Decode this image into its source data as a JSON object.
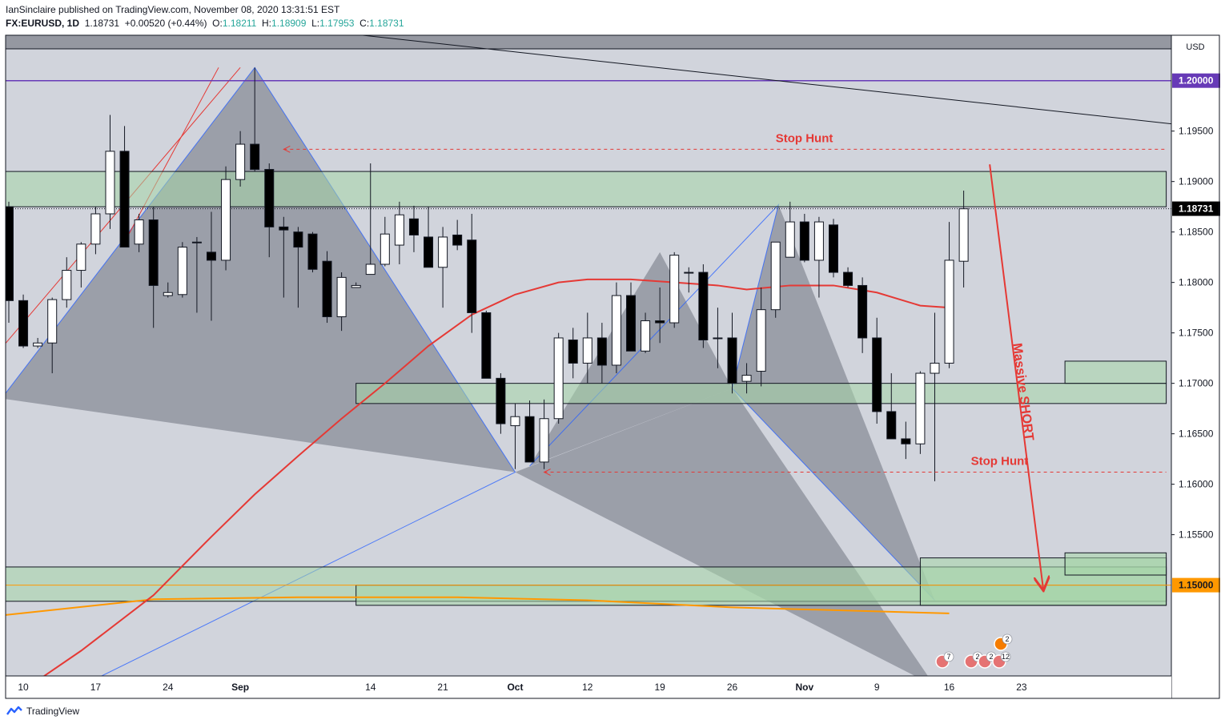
{
  "header": {
    "publisher_line": "IanSinclaire published on TradingView.com, November 08, 2020 13:31:51 EST",
    "symbol": "FX:EURUSD, 1D",
    "last": "1.18731",
    "change": "+0.00520 (+0.44%)",
    "o_label": "O:",
    "o_value": "1.18211",
    "h_label": "H:",
    "h_value": "1.18909",
    "l_label": "L:",
    "l_value": "1.17953",
    "c_label": "C:",
    "c_value": "1.18731"
  },
  "footer": {
    "brand": "TradingView"
  },
  "chart_data": {
    "type": "candlestick",
    "currency": "USD",
    "y_range": [
      1.141,
      1.2045
    ],
    "y_ticks": [
      "1.19500",
      "1.19000",
      "1.18500",
      "1.18000",
      "1.17500",
      "1.17000",
      "1.16500",
      "1.16000",
      "1.15500"
    ],
    "price_labels": [
      {
        "text": "1.20000",
        "value": 1.2,
        "color": "#673ab7"
      },
      {
        "text": "1.18731",
        "value": 1.18731,
        "color": "#000000"
      },
      {
        "text": "1.15000",
        "value": 1.15,
        "color": "#ff9800"
      }
    ],
    "x_ticks": [
      "10",
      "17",
      "24",
      "Sep",
      "14",
      "21",
      "Oct",
      "12",
      "19",
      "26",
      "Nov",
      "9",
      "16",
      "23"
    ],
    "candles": [
      {
        "o": 1.1875,
        "h": 1.188,
        "l": 1.176,
        "c": 1.1782
      },
      {
        "o": 1.1782,
        "h": 1.1788,
        "l": 1.1735,
        "c": 1.1737
      },
      {
        "o": 1.1737,
        "h": 1.1745,
        "l": 1.1735,
        "c": 1.174
      },
      {
        "o": 1.174,
        "h": 1.1785,
        "l": 1.171,
        "c": 1.1783
      },
      {
        "o": 1.1783,
        "h": 1.1825,
        "l": 1.1775,
        "c": 1.1812
      },
      {
        "o": 1.1812,
        "h": 1.184,
        "l": 1.1795,
        "c": 1.1838
      },
      {
        "o": 1.1838,
        "h": 1.1875,
        "l": 1.1828,
        "c": 1.1868
      },
      {
        "o": 1.1868,
        "h": 1.1966,
        "l": 1.1853,
        "c": 1.193
      },
      {
        "o": 1.193,
        "h": 1.1955,
        "l": 1.1835,
        "c": 1.1835
      },
      {
        "o": 1.1838,
        "h": 1.1868,
        "l": 1.183,
        "c": 1.1862
      },
      {
        "o": 1.1862,
        "h": 1.1875,
        "l": 1.1755,
        "c": 1.1797
      },
      {
        "o": 1.1787,
        "h": 1.18,
        "l": 1.1785,
        "c": 1.179
      },
      {
        "o": 1.1788,
        "h": 1.184,
        "l": 1.1785,
        "c": 1.1835
      },
      {
        "o": 1.184,
        "h": 1.1845,
        "l": 1.177,
        "c": 1.184
      },
      {
        "o": 1.183,
        "h": 1.187,
        "l": 1.1762,
        "c": 1.1822
      },
      {
        "o": 1.1822,
        "h": 1.1915,
        "l": 1.1812,
        "c": 1.1902
      },
      {
        "o": 1.1902,
        "h": 1.195,
        "l": 1.1895,
        "c": 1.1937
      },
      {
        "o": 1.1937,
        "h": 1.2013,
        "l": 1.191,
        "c": 1.1912
      },
      {
        "o": 1.1912,
        "h": 1.1918,
        "l": 1.1825,
        "c": 1.1855
      },
      {
        "o": 1.1855,
        "h": 1.1865,
        "l": 1.1785,
        "c": 1.1852
      },
      {
        "o": 1.185,
        "h": 1.1855,
        "l": 1.1775,
        "c": 1.1835
      },
      {
        "o": 1.1848,
        "h": 1.185,
        "l": 1.181,
        "c": 1.1813
      },
      {
        "o": 1.1821,
        "h": 1.1831,
        "l": 1.176,
        "c": 1.1766
      },
      {
        "o": 1.1766,
        "h": 1.181,
        "l": 1.1752,
        "c": 1.1805
      },
      {
        "o": 1.1795,
        "h": 1.18,
        "l": 1.1795,
        "c": 1.1797
      },
      {
        "o": 1.1808,
        "h": 1.1918,
        "l": 1.181,
        "c": 1.1818
      },
      {
        "o": 1.1818,
        "h": 1.1865,
        "l": 1.1816,
        "c": 1.1848
      },
      {
        "o": 1.1837,
        "h": 1.188,
        "l": 1.1818,
        "c": 1.1867
      },
      {
        "o": 1.1863,
        "h": 1.1876,
        "l": 1.183,
        "c": 1.1847
      },
      {
        "o": 1.1845,
        "h": 1.1875,
        "l": 1.1815,
        "c": 1.1815
      },
      {
        "o": 1.1815,
        "h": 1.1855,
        "l": 1.1775,
        "c": 1.1845
      },
      {
        "o": 1.1847,
        "h": 1.1862,
        "l": 1.1832,
        "c": 1.1837
      },
      {
        "o": 1.1842,
        "h": 1.1868,
        "l": 1.175,
        "c": 1.177
      },
      {
        "o": 1.177,
        "h": 1.1772,
        "l": 1.1705,
        "c": 1.1705
      },
      {
        "o": 1.1705,
        "h": 1.171,
        "l": 1.165,
        "c": 1.166
      },
      {
        "o": 1.1658,
        "h": 1.168,
        "l": 1.1615,
        "c": 1.1667
      },
      {
        "o": 1.1667,
        "h": 1.1683,
        "l": 1.1622,
        "c": 1.1622
      },
      {
        "o": 1.1622,
        "h": 1.1684,
        "l": 1.1615,
        "c": 1.1665
      },
      {
        "o": 1.1665,
        "h": 1.175,
        "l": 1.166,
        "c": 1.1745
      },
      {
        "o": 1.1743,
        "h": 1.1755,
        "l": 1.1705,
        "c": 1.172
      },
      {
        "o": 1.172,
        "h": 1.177,
        "l": 1.17,
        "c": 1.1745
      },
      {
        "o": 1.1745,
        "h": 1.176,
        "l": 1.17,
        "c": 1.1718
      },
      {
        "o": 1.1718,
        "h": 1.18,
        "l": 1.171,
        "c": 1.1787
      },
      {
        "o": 1.1787,
        "h": 1.18,
        "l": 1.1732,
        "c": 1.1732
      },
      {
        "o": 1.1732,
        "h": 1.177,
        "l": 1.173,
        "c": 1.1762
      },
      {
        "o": 1.1762,
        "h": 1.1795,
        "l": 1.174,
        "c": 1.176
      },
      {
        "o": 1.176,
        "h": 1.183,
        "l": 1.1755,
        "c": 1.1827
      },
      {
        "o": 1.181,
        "h": 1.1815,
        "l": 1.179,
        "c": 1.181
      },
      {
        "o": 1.181,
        "h": 1.1818,
        "l": 1.1735,
        "c": 1.1743
      },
      {
        "o": 1.1745,
        "h": 1.1775,
        "l": 1.1715,
        "c": 1.1745
      },
      {
        "o": 1.1745,
        "h": 1.177,
        "l": 1.169,
        "c": 1.17
      },
      {
        "o": 1.1702,
        "h": 1.172,
        "l": 1.169,
        "c": 1.1708
      },
      {
        "o": 1.1712,
        "h": 1.1795,
        "l": 1.1697,
        "c": 1.1773
      },
      {
        "o": 1.1773,
        "h": 1.184,
        "l": 1.1765,
        "c": 1.184
      },
      {
        "o": 1.1825,
        "h": 1.188,
        "l": 1.1825,
        "c": 1.186
      },
      {
        "o": 1.186,
        "h": 1.1868,
        "l": 1.182,
        "c": 1.1822
      },
      {
        "o": 1.1822,
        "h": 1.1865,
        "l": 1.1785,
        "c": 1.186
      },
      {
        "o": 1.1857,
        "h": 1.1863,
        "l": 1.1805,
        "c": 1.181
      },
      {
        "o": 1.181,
        "h": 1.1815,
        "l": 1.1795,
        "c": 1.1797
      },
      {
        "o": 1.1797,
        "h": 1.1805,
        "l": 1.173,
        "c": 1.1745
      },
      {
        "o": 1.1745,
        "h": 1.1765,
        "l": 1.166,
        "c": 1.1672
      },
      {
        "o": 1.1672,
        "h": 1.171,
        "l": 1.1645,
        "c": 1.1645
      },
      {
        "o": 1.1645,
        "h": 1.1662,
        "l": 1.1625,
        "c": 1.164
      },
      {
        "o": 1.164,
        "h": 1.1712,
        "l": 1.163,
        "c": 1.171
      },
      {
        "o": 1.171,
        "h": 1.177,
        "l": 1.1603,
        "c": 1.172
      },
      {
        "o": 1.172,
        "h": 1.186,
        "l": 1.1715,
        "c": 1.1822
      },
      {
        "o": 1.1821,
        "h": 1.1891,
        "l": 1.1795,
        "c": 1.1873
      }
    ],
    "ema": [
      {
        "x": 0,
        "y": 1.1386
      },
      {
        "x": 5,
        "y": 1.1435
      },
      {
        "x": 10,
        "y": 1.149
      },
      {
        "x": 14,
        "y": 1.1548
      },
      {
        "x": 17,
        "y": 1.159
      },
      {
        "x": 20,
        "y": 1.1628
      },
      {
        "x": 23,
        "y": 1.1665
      },
      {
        "x": 26,
        "y": 1.17
      },
      {
        "x": 29,
        "y": 1.1737
      },
      {
        "x": 32,
        "y": 1.1768
      },
      {
        "x": 35,
        "y": 1.1788
      },
      {
        "x": 38,
        "y": 1.18
      },
      {
        "x": 40,
        "y": 1.1803
      },
      {
        "x": 43,
        "y": 1.1803
      },
      {
        "x": 46,
        "y": 1.18
      },
      {
        "x": 49,
        "y": 1.1797
      },
      {
        "x": 51,
        "y": 1.1793
      },
      {
        "x": 54,
        "y": 1.1797
      },
      {
        "x": 57,
        "y": 1.1797
      },
      {
        "x": 60,
        "y": 1.179
      },
      {
        "x": 63,
        "y": 1.1777
      },
      {
        "x": 65,
        "y": 1.1775
      }
    ],
    "sma200": [
      {
        "x": -0.5,
        "y": 1.147
      },
      {
        "x": 10,
        "y": 1.1486
      },
      {
        "x": 20,
        "y": 1.1488
      },
      {
        "x": 31,
        "y": 1.1488
      },
      {
        "x": 40,
        "y": 1.1485
      },
      {
        "x": 50,
        "y": 1.1478
      },
      {
        "x": 60,
        "y": 1.1474
      },
      {
        "x": 65,
        "y": 1.1472
      }
    ],
    "zones": [
      {
        "x0": -0.5,
        "x1": 80,
        "y0": 1.1875,
        "y1": 1.191
      },
      {
        "x0": 24,
        "x1": 80,
        "y0": 1.168,
        "y1": 1.17
      },
      {
        "x0": 73,
        "x1": 80,
        "y0": 1.17,
        "y1": 1.1722
      },
      {
        "x0": -0.5,
        "x1": 80,
        "y0": 1.1484,
        "y1": 1.1518
      },
      {
        "x0": 24,
        "x1": 80,
        "y0": 1.148,
        "y1": 1.15
      },
      {
        "x0": 63,
        "x1": 80,
        "y0": 1.148,
        "y1": 1.1527
      },
      {
        "x0": 73,
        "x1": 80,
        "y0": 1.151,
        "y1": 1.1532
      }
    ],
    "harmonic_patterns": [
      [
        {
          "x": -0.5,
          "y": 1.1685
        },
        {
          "x": 17,
          "y": 1.2013
        },
        {
          "x": 35,
          "y": 1.1612
        },
        {
          "x": 5,
          "y": 1.14
        }
      ],
      [
        {
          "x": 36,
          "y": 1.1618
        },
        {
          "x": 53.2,
          "y": 1.1877
        },
        {
          "x": 50,
          "y": 1.1695
        },
        {
          "x": 64,
          "y": 1.1485
        }
      ]
    ],
    "triangles": [
      [
        {
          "x": 35,
          "y": 1.1612
        },
        {
          "x": 50,
          "y": 1.1695
        },
        {
          "x": 64,
          "y": 1.14
        }
      ],
      [
        {
          "x": -0.5,
          "y": 1.1685
        },
        {
          "x": 17,
          "y": 1.2013
        },
        {
          "x": 35,
          "y": 1.1612
        }
      ],
      [
        {
          "x": 36,
          "y": 1.1618
        },
        {
          "x": 45,
          "y": 1.183
        },
        {
          "x": 50,
          "y": 1.1695
        }
      ],
      [
        {
          "x": 50,
          "y": 1.1695
        },
        {
          "x": 53.2,
          "y": 1.1877
        },
        {
          "x": 64,
          "y": 1.1485
        }
      ]
    ],
    "channel": [
      {
        "x1": -0.5,
        "y1": 1.1735,
        "x2": 16,
        "y2": 1.2013
      },
      {
        "x1": 8,
        "y1": 1.184,
        "x2": 14.5,
        "y2": 1.2013
      }
    ],
    "trendline": {
      "x1": 20,
      "y1": 1.2052,
      "x2": 80.5,
      "y2": 1.1957
    },
    "lines": [
      {
        "label": "Stop Hunt",
        "y": 1.1932,
        "x0": 19,
        "x1": 80,
        "label_x": 53
      },
      {
        "label": "Stop Hunt",
        "y": 1.1612,
        "x0": 37,
        "x1": 80,
        "label_x": 66.5
      }
    ],
    "arrow": {
      "label": "Massive SHORT",
      "x1": 67.8,
      "y1": 1.1917,
      "x2": 71.5,
      "y2": 1.1496
    },
    "event_badges": [
      "7",
      "2",
      "2",
      "12",
      "2"
    ]
  }
}
